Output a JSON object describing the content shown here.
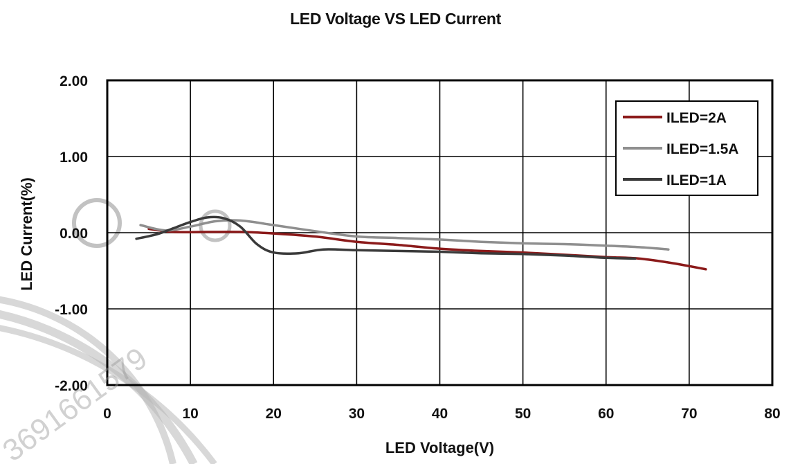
{
  "chart_data": {
    "type": "line",
    "title": "LED Voltage VS LED Current",
    "xlabel": "LED Voltage(V)",
    "ylabel": "LED Current(%)",
    "xlim": [
      0,
      80
    ],
    "ylim": [
      -2,
      2
    ],
    "x_ticks": [
      "0",
      "10",
      "20",
      "30",
      "40",
      "50",
      "60",
      "70",
      "80"
    ],
    "y_ticks": [
      "2.00",
      "1.00",
      "0.00",
      "-1.00",
      "-2.00"
    ],
    "grid": true,
    "legend_position": "top-right",
    "series": [
      {
        "name": "ILED=2A",
        "color": "#8b1a1a",
        "points": [
          [
            5,
            0.05
          ],
          [
            8,
            0.01
          ],
          [
            12,
            0.01
          ],
          [
            16,
            0.01
          ],
          [
            20,
            -0.01
          ],
          [
            25,
            -0.05
          ],
          [
            30,
            -0.12
          ],
          [
            35,
            -0.16
          ],
          [
            40,
            -0.21
          ],
          [
            45,
            -0.24
          ],
          [
            50,
            -0.26
          ],
          [
            55,
            -0.29
          ],
          [
            60,
            -0.32
          ],
          [
            64,
            -0.34
          ],
          [
            68,
            -0.4
          ],
          [
            72,
            -0.48
          ]
        ]
      },
      {
        "name": "ILED=1.5A",
        "color": "#8f8f8f",
        "points": [
          [
            4,
            0.1
          ],
          [
            7,
            0.03
          ],
          [
            10,
            0.08
          ],
          [
            13,
            0.15
          ],
          [
            16,
            0.16
          ],
          [
            20,
            0.1
          ],
          [
            25,
            0.02
          ],
          [
            30,
            -0.05
          ],
          [
            35,
            -0.07
          ],
          [
            40,
            -0.09
          ],
          [
            45,
            -0.12
          ],
          [
            50,
            -0.14
          ],
          [
            55,
            -0.15
          ],
          [
            60,
            -0.17
          ],
          [
            64,
            -0.19
          ],
          [
            67.5,
            -0.22
          ]
        ]
      },
      {
        "name": "ILED=1A",
        "color": "#3a3a3a",
        "points": [
          [
            3.5,
            -0.08
          ],
          [
            6,
            -0.02
          ],
          [
            8,
            0.06
          ],
          [
            10,
            0.14
          ],
          [
            12,
            0.2
          ],
          [
            14,
            0.19
          ],
          [
            16,
            0.08
          ],
          [
            18,
            -0.15
          ],
          [
            20,
            -0.26
          ],
          [
            23,
            -0.27
          ],
          [
            26,
            -0.22
          ],
          [
            30,
            -0.23
          ],
          [
            35,
            -0.24
          ],
          [
            40,
            -0.25
          ],
          [
            45,
            -0.27
          ],
          [
            50,
            -0.28
          ],
          [
            55,
            -0.3
          ],
          [
            60,
            -0.33
          ],
          [
            63.5,
            -0.34
          ]
        ]
      }
    ]
  },
  "watermark": {
    "text": "3691661579"
  }
}
